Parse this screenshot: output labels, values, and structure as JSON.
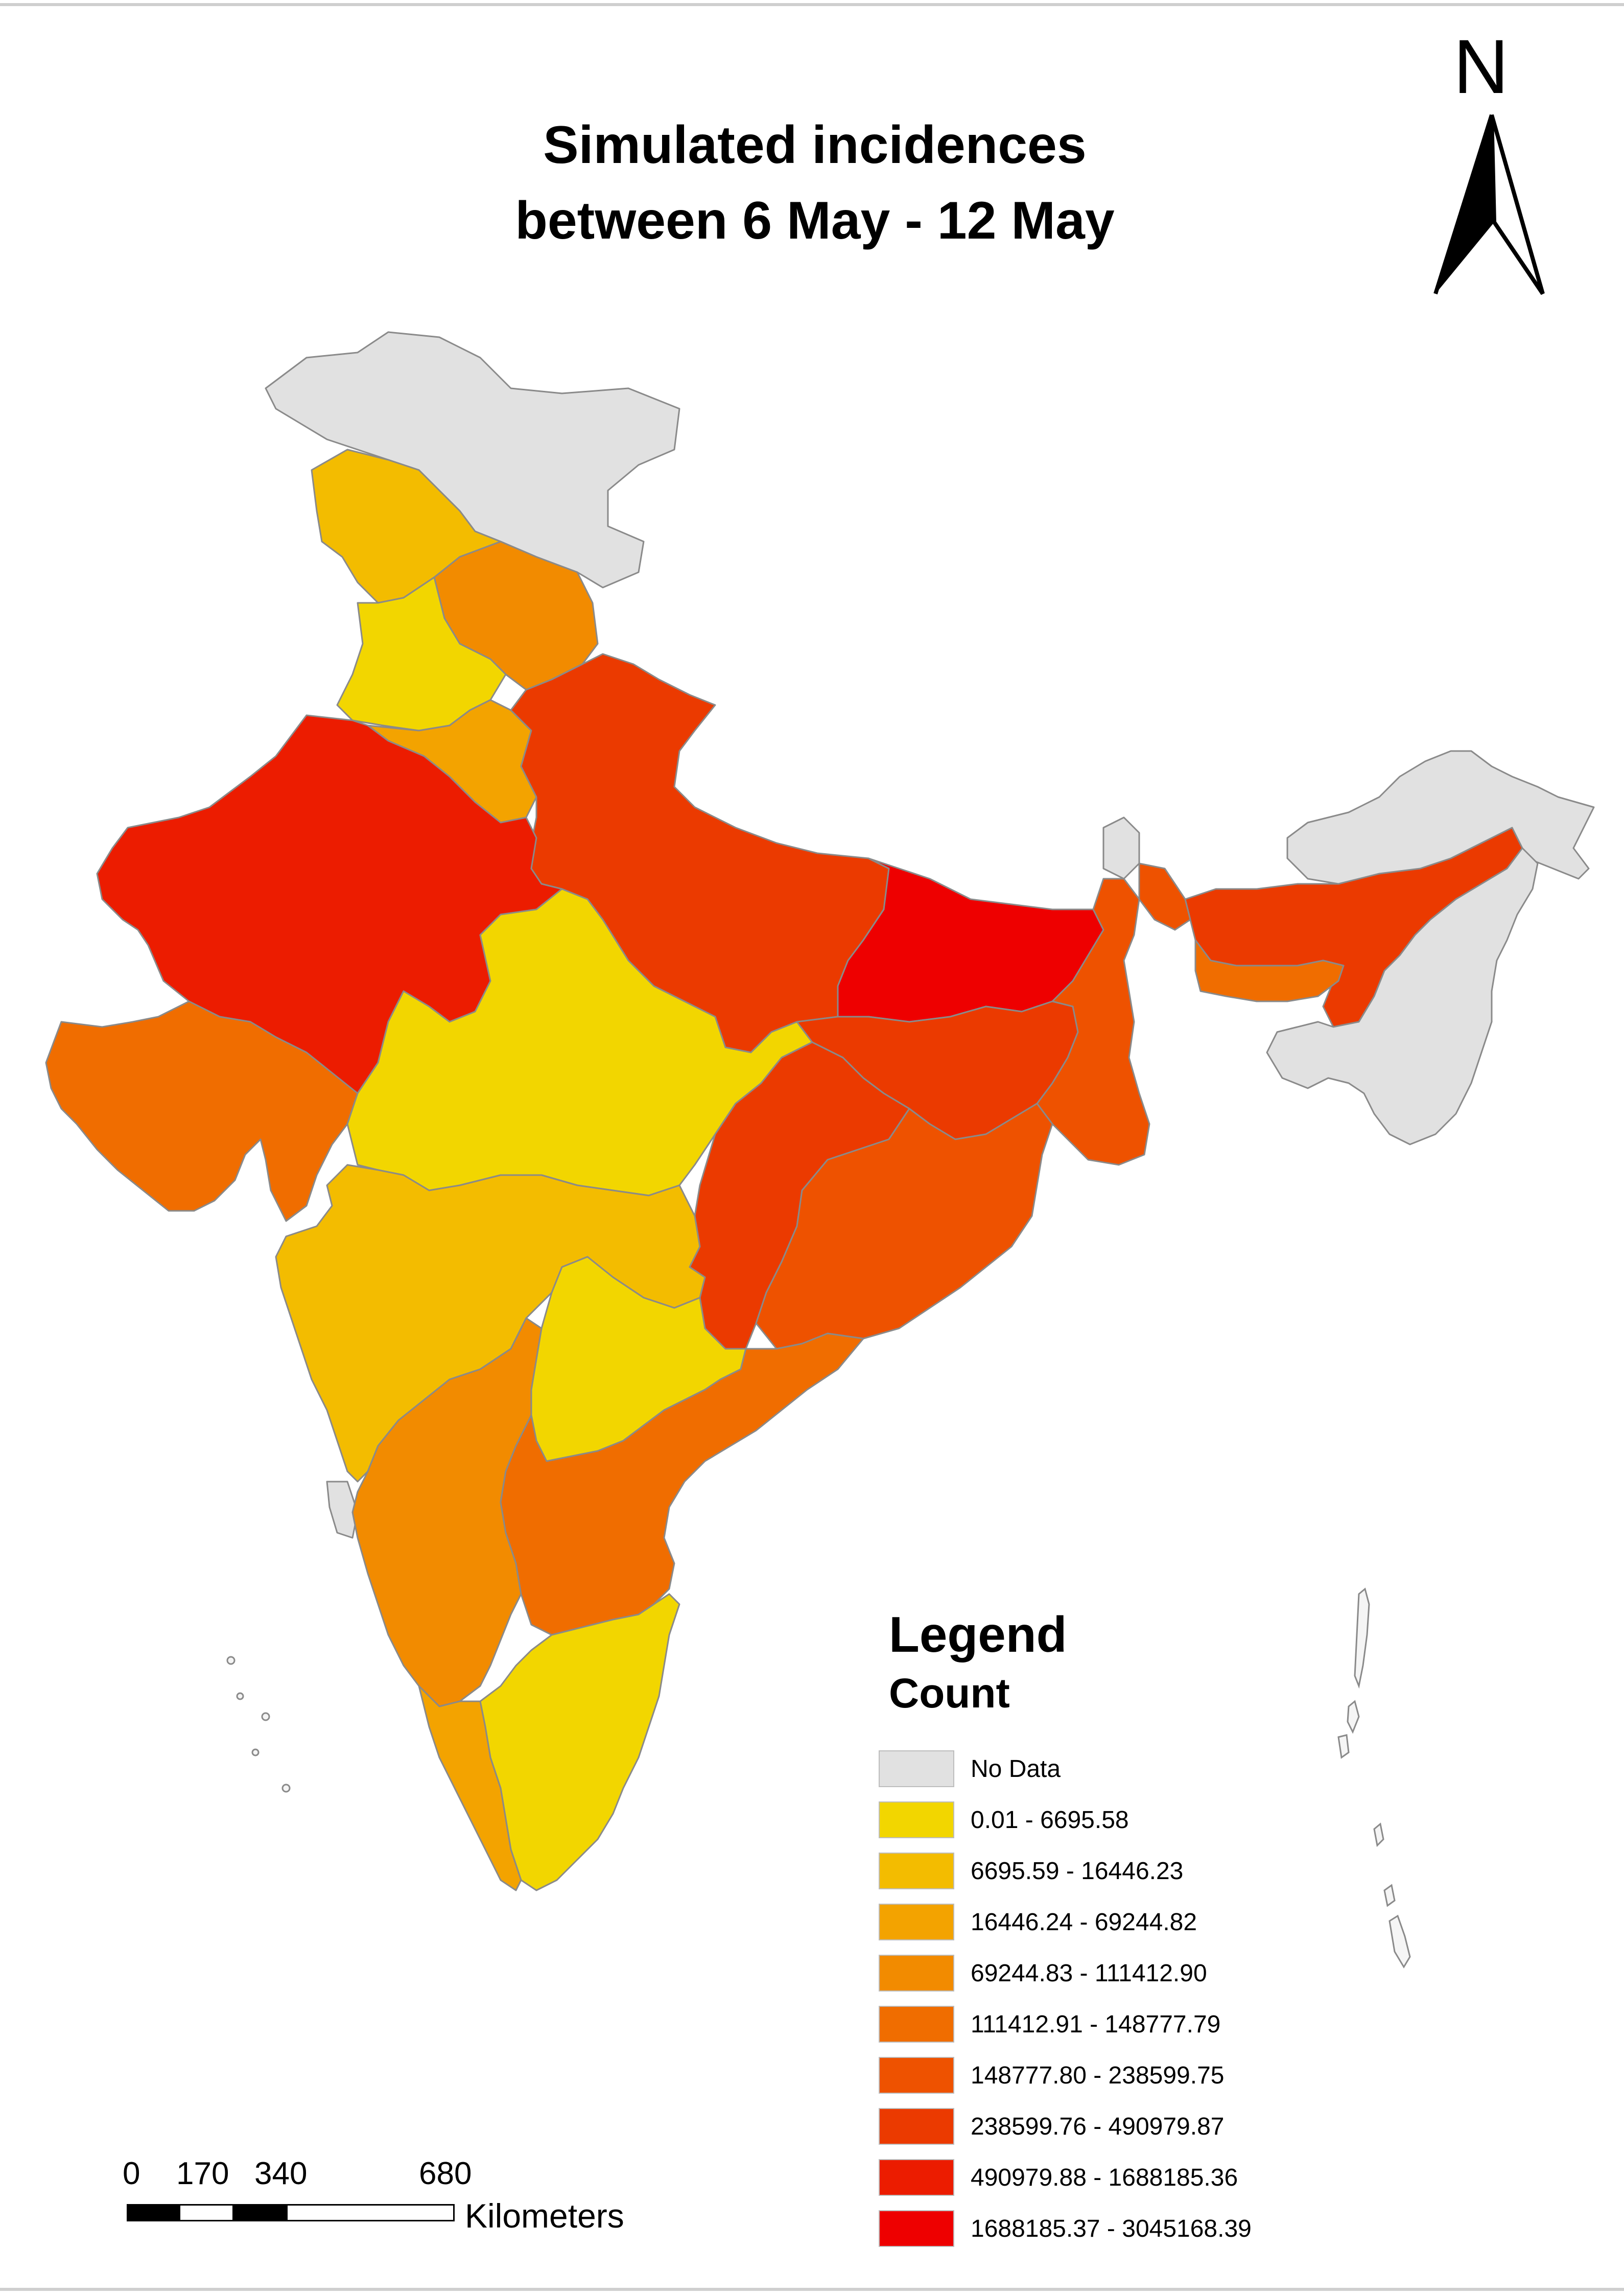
{
  "title_line1": "Simulated incidences",
  "title_line2": "between 6 May - 12 May",
  "north_label": "N",
  "legend": {
    "title": "Legend",
    "subtitle": "Count",
    "items": [
      {
        "label": "No Data",
        "color": "#e1e1e1"
      },
      {
        "label": "0.01 - 6695.58",
        "color": "#f2d600"
      },
      {
        "label": "6695.59 - 16446.23",
        "color": "#f3bc00"
      },
      {
        "label": "16446.24 - 69244.82",
        "color": "#f3a300"
      },
      {
        "label": "69244.83 - 111412.90",
        "color": "#f28b00"
      },
      {
        "label": "111412.91 - 148777.79",
        "color": "#f06d00"
      },
      {
        "label": "148777.80 - 238599.75",
        "color": "#ee5200"
      },
      {
        "label": "238599.76 - 490979.87",
        "color": "#eb3a00"
      },
      {
        "label": "490979.88 - 1688185.36",
        "color": "#ec1c00"
      },
      {
        "label": "1688185.37 - 3045168.39",
        "color": "#ee0000"
      }
    ]
  },
  "scale": {
    "ticks": [
      "0",
      "170",
      "340",
      "680"
    ],
    "unit": "Kilometers"
  }
}
